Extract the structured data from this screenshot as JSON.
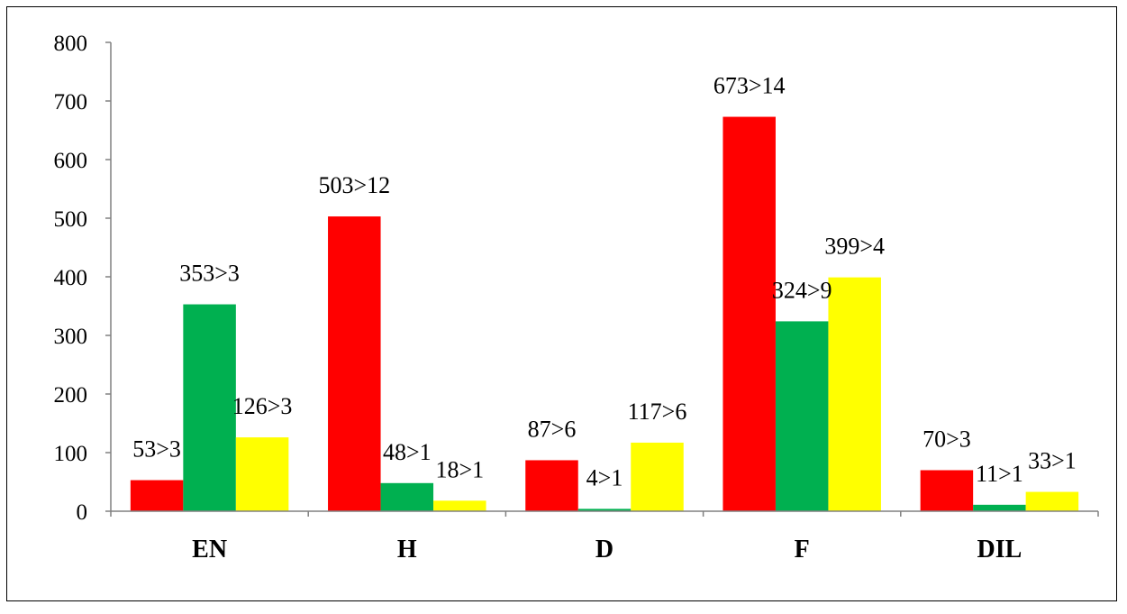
{
  "chart_data": {
    "type": "bar",
    "title": "",
    "xlabel": "",
    "ylabel": "",
    "ylim": [
      0,
      800
    ],
    "yticks": [
      0,
      100,
      200,
      300,
      400,
      500,
      600,
      700,
      800
    ],
    "grid": false,
    "legend": "none",
    "categories": [
      "EN",
      "H",
      "D",
      "F",
      "DIL"
    ],
    "series": [
      {
        "color": "#ff0000",
        "values": [
          53,
          503,
          87,
          673,
          70
        ],
        "labels": [
          "53>3",
          "503>12",
          "87>6",
          "673>14",
          "70>3"
        ]
      },
      {
        "color": "#00b050",
        "values": [
          353,
          48,
          4,
          324,
          11
        ],
        "labels": [
          "353>3",
          "48>1",
          "4>1",
          "324>9",
          "11>1"
        ]
      },
      {
        "color": "#ffff00",
        "values": [
          126,
          18,
          117,
          399,
          33
        ],
        "labels": [
          "126>3",
          "18>1",
          "117>6",
          "399>4",
          "33>1"
        ]
      }
    ]
  }
}
